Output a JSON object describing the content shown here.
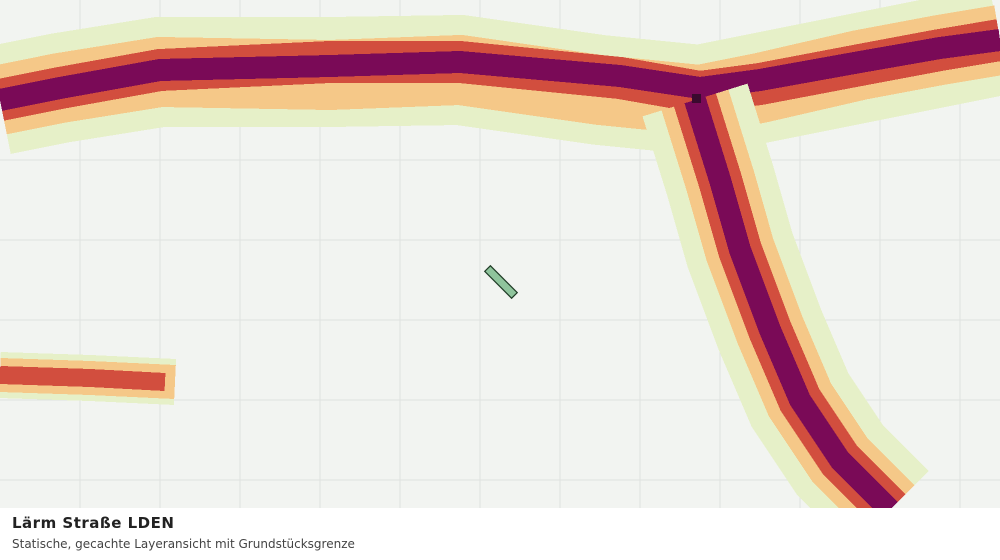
{
  "map_caption": {
    "title": "Lärm Straße LDEN",
    "subtitle": "Statische, gecachte Layeransicht mit Grundstücksgrenze"
  }
}
